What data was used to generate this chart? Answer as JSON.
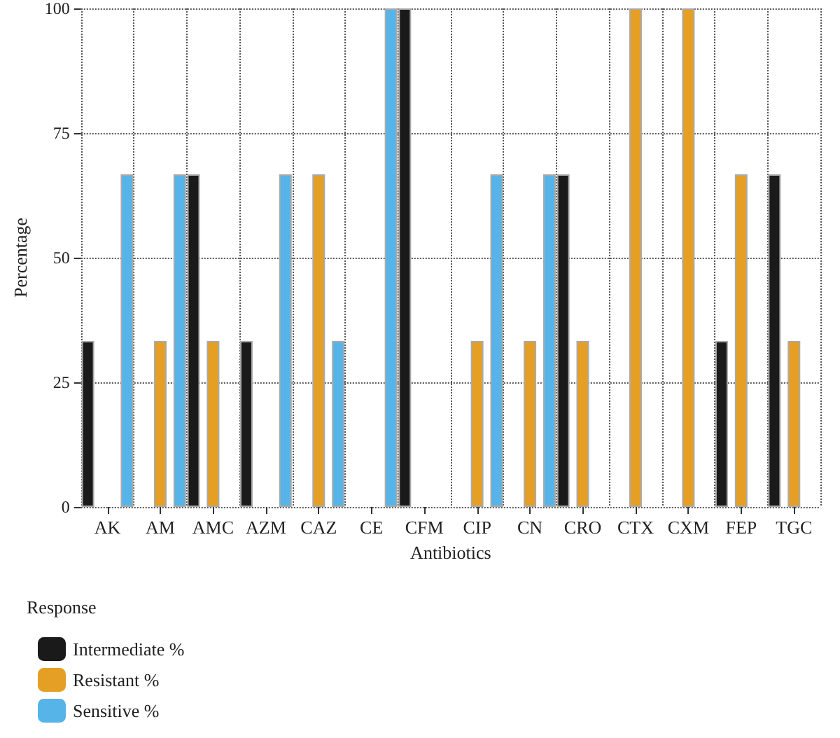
{
  "chart_data": {
    "type": "bar",
    "xlabel": "Antibiotics",
    "ylabel": "Percentage",
    "legend_title": "Response",
    "categories": [
      "AK",
      "AM",
      "AMC",
      "AZM",
      "CAZ",
      "CE",
      "CFM",
      "CIP",
      "CN",
      "CRO",
      "CTX",
      "CXM",
      "FEP",
      "TGC"
    ],
    "series": [
      {
        "name": "Intermediate %",
        "color": "#1a1a1a",
        "values": [
          33.3,
          null,
          66.7,
          33.3,
          null,
          null,
          100,
          null,
          null,
          66.7,
          null,
          null,
          33.3,
          66.7
        ]
      },
      {
        "name": "Resistant %",
        "color": "#e69f25",
        "values": [
          null,
          33.3,
          33.3,
          null,
          66.7,
          null,
          null,
          33.3,
          33.3,
          33.3,
          100,
          100,
          66.7,
          33.3
        ]
      },
      {
        "name": "Sensitive %",
        "color": "#56b4e9",
        "values": [
          66.7,
          66.7,
          null,
          66.7,
          33.3,
          100,
          null,
          66.7,
          66.7,
          null,
          null,
          null,
          null,
          null
        ]
      }
    ],
    "ylim": [
      0,
      100
    ],
    "yticks": [
      0,
      25,
      50,
      75,
      100
    ],
    "grid": true,
    "line_style": "dotted",
    "legend": "bottom left"
  }
}
